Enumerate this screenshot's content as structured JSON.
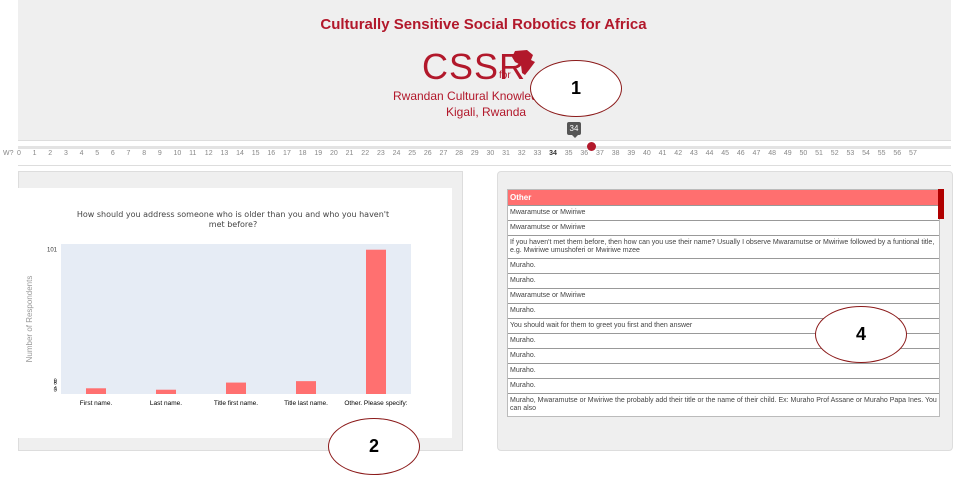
{
  "header": {
    "title": "Culturally Sensitive Social Robotics for Africa",
    "logo_text": "CSSR",
    "logo_for": "for",
    "subtitle_line1": "Rwandan Cultural Knowledge",
    "subtitle_line2": "Kigali, Rwanda"
  },
  "callouts": [
    "1",
    "2",
    "4"
  ],
  "slider": {
    "value": "34",
    "ticks": [
      "W?",
      "0",
      "1",
      "2",
      "3",
      "4",
      "5",
      "6",
      "7",
      "8",
      "9",
      "10",
      "11",
      "12",
      "13",
      "14",
      "15",
      "16",
      "17",
      "18",
      "19",
      "20",
      "21",
      "22",
      "23",
      "24",
      "25",
      "26",
      "27",
      "28",
      "29",
      "30",
      "31",
      "32",
      "33",
      "34",
      "35",
      "36",
      "37",
      "38",
      "39",
      "40",
      "41",
      "42",
      "43",
      "44",
      "45",
      "46",
      "47",
      "48",
      "49",
      "50",
      "51",
      "52",
      "53",
      "54",
      "55",
      "56",
      "57"
    ]
  },
  "chart_data": {
    "type": "bar",
    "title": "How should you address someone who is older than you and who you haven't met before?",
    "ylabel": "Number of Respondents",
    "xlabel": "",
    "categories": [
      "First name.",
      "Last name.",
      "Title first name.",
      "Title last name.",
      "Other. Please specify:"
    ],
    "values": [
      4,
      3,
      8,
      9,
      101
    ],
    "ytick_labels": [
      "101",
      "9",
      "8",
      "4",
      "3"
    ],
    "bar_color": "#ff7070",
    "plot_bg": "#e6ecf5"
  },
  "table": {
    "header": "Other",
    "rows": [
      "Mwaramutse or Mwiriwe",
      "Mwaramutse or Mwiriwe",
      "If you haven't met them before, then how can you use their name? Usually I observe Mwaramutse or Mwiriwe followed by a funtional title, e.g. Mwiriwe umushoferi or Mwiriwe mzee",
      "Muraho.",
      "Muraho.",
      "Mwaramutse or Mwiriwe",
      "Muraho.",
      "You should wait for them to greet you first and then answer",
      "Muraho.",
      "Muraho.",
      "Muraho.",
      "Muraho.",
      "Muraho, Mwaramutse or Mwiriwe the probably add their title or the name of their child. Ex: Muraho Prof Assane or Muraho Papa Ines. You can also"
    ]
  },
  "colors": {
    "brand": "#b2182b",
    "header_bg": "#ff6f6f"
  }
}
